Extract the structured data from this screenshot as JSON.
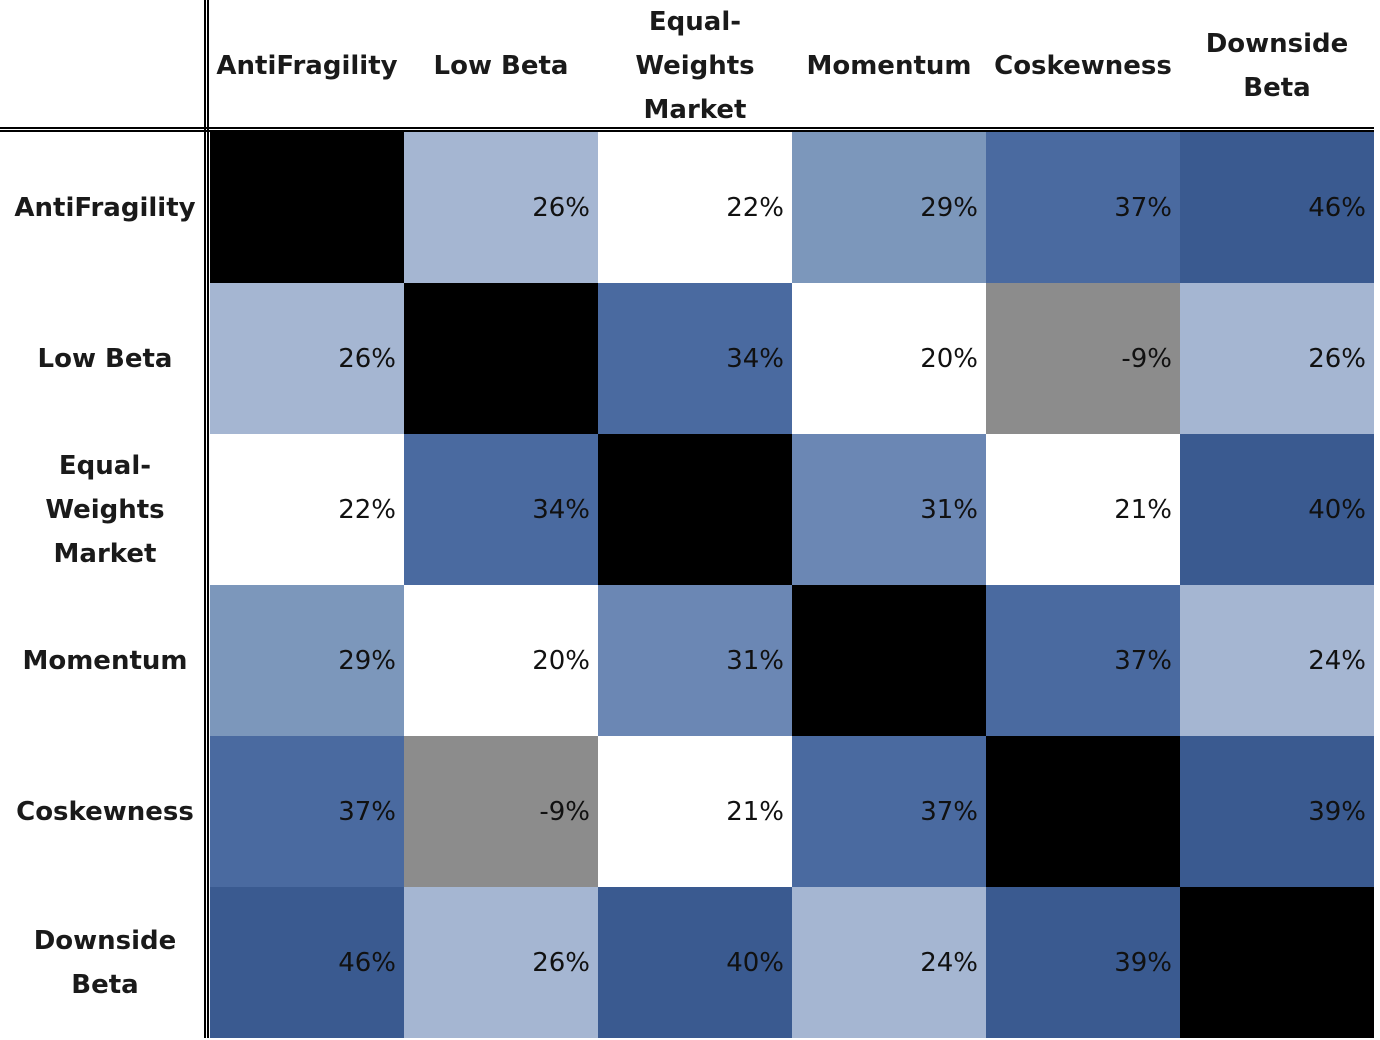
{
  "chart_data": {
    "type": "heatmap",
    "title": "",
    "rows": [
      "AntiFragility",
      "Low Beta",
      "Equal-Weights Market",
      "Momentum",
      "Coskewness",
      "Downside Beta"
    ],
    "columns": [
      "AntiFragility",
      "Low Beta",
      "Equal-Weights Market",
      "Momentum",
      "Coskewness",
      "Downside Beta"
    ],
    "row_labels_display": [
      "AntiFragility",
      "Low Beta",
      "Equal-Weights\nMarket",
      "Momentum",
      "Coskewness",
      "Downside\nBeta"
    ],
    "column_labels_display": [
      "AntiFragility",
      "Low Beta",
      "Equal-\nWeights\nMarket",
      "Momentum",
      "Coskewness",
      "Downside\nBeta"
    ],
    "values": [
      [
        null,
        0.26,
        0.22,
        0.29,
        0.37,
        0.46
      ],
      [
        0.26,
        null,
        0.34,
        0.2,
        -0.09,
        0.26
      ],
      [
        0.22,
        0.34,
        null,
        0.31,
        0.21,
        0.4
      ],
      [
        0.29,
        0.2,
        0.31,
        null,
        0.37,
        0.24
      ],
      [
        0.37,
        -0.09,
        0.21,
        0.37,
        null,
        0.39
      ],
      [
        0.46,
        0.26,
        0.4,
        0.24,
        0.39,
        null
      ]
    ],
    "labels": [
      [
        "",
        "26%",
        "22%",
        "29%",
        "37%",
        "46%"
      ],
      [
        "26%",
        "",
        "34%",
        "20%",
        "-9%",
        "26%"
      ],
      [
        "22%",
        "34%",
        "",
        "31%",
        "21%",
        "40%"
      ],
      [
        "29%",
        "20%",
        "31%",
        "",
        "37%",
        "24%"
      ],
      [
        "37%",
        "-9%",
        "21%",
        "37%",
        "",
        "39%"
      ],
      [
        "46%",
        "26%",
        "40%",
        "24%",
        "39%",
        ""
      ]
    ],
    "colors": {
      "diagonal": "#000000",
      "negative": "#8c8c8c",
      "scale": [
        {
          "max": 0.22,
          "color": "#ffffff"
        },
        {
          "max": 0.27,
          "color": "#a5b6d2"
        },
        {
          "max": 0.295,
          "color": "#7c97bb"
        },
        {
          "max": 0.32,
          "color": "#6b87b4"
        },
        {
          "max": 0.375,
          "color": "#4a6aa0"
        },
        {
          "max": 1.0,
          "color": "#3a5a90"
        }
      ]
    },
    "grid": false,
    "legend": "none"
  }
}
